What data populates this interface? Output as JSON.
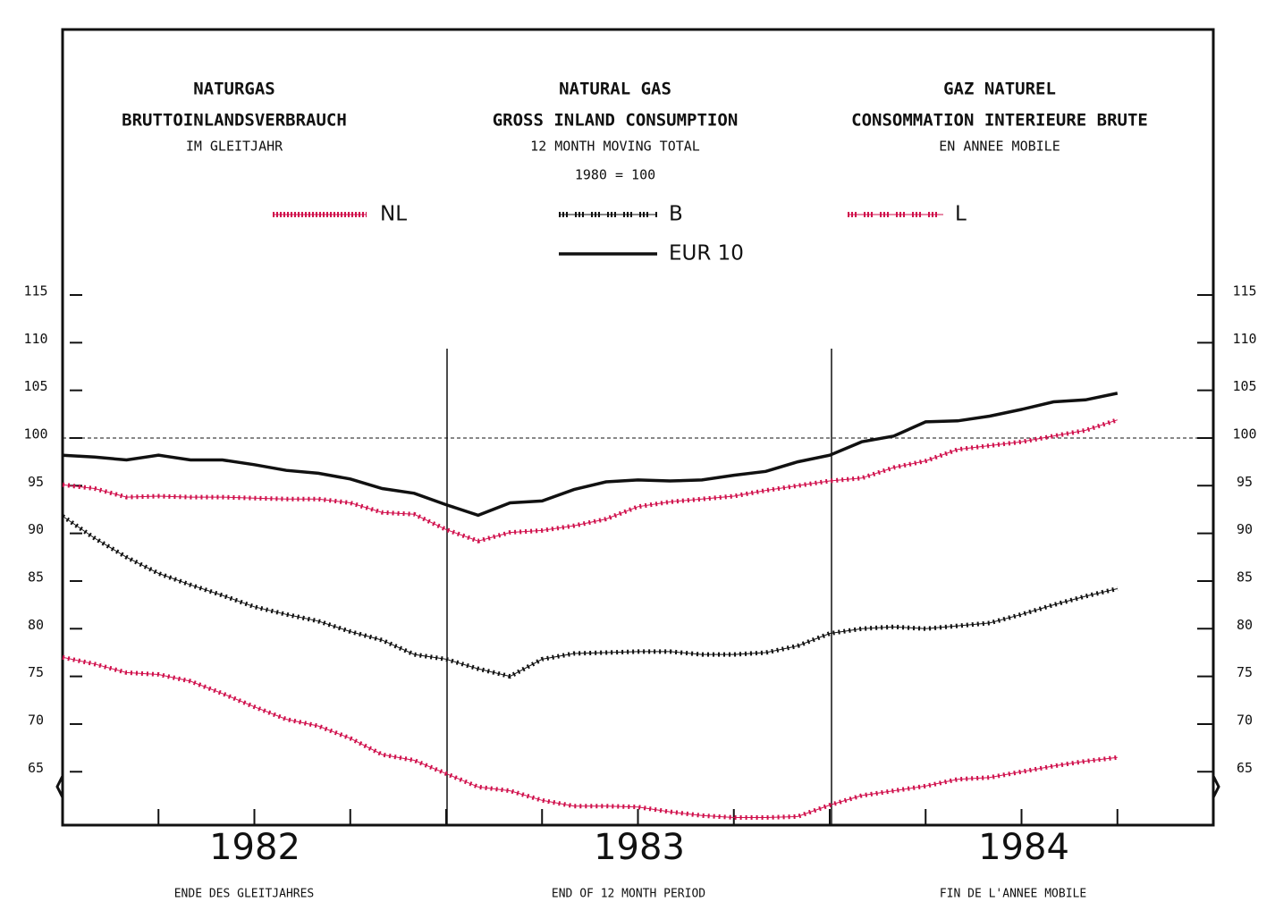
{
  "chart_data": {
    "type": "line",
    "title_de": [
      "NATURGAS",
      "BRUTTOINLANDSVERBRAUCH",
      "IM GLEITJAHR"
    ],
    "title_en": [
      "NATURAL GAS",
      "GROSS INLAND CONSUMPTION",
      "12 MONTH MOVING TOTAL",
      "1980 = 100"
    ],
    "title_fr": [
      "GAZ NATUREL",
      "CONSOMMATION INTERIEURE BRUTE",
      "EN ANNEE MOBILE"
    ],
    "year_labels": [
      "1982",
      "1983",
      "1984"
    ],
    "x_labels": [
      "ENDE DES GLEITJAHRES",
      "END OF 12 MONTH PERIOD",
      "FIN DE L'ANNEE MOBILE"
    ],
    "x": [
      0,
      1,
      2,
      3,
      4,
      5,
      6,
      7,
      8,
      9,
      10,
      11,
      12,
      13,
      14,
      15,
      16,
      17,
      18,
      19,
      20,
      21,
      22,
      23,
      24,
      25,
      26,
      27,
      28,
      29,
      30,
      31,
      32,
      33
    ],
    "xlim": [
      0,
      36
    ],
    "ylim": [
      60,
      115
    ],
    "yticks": [
      65,
      70,
      75,
      80,
      85,
      90,
      95,
      100,
      105,
      110,
      115
    ],
    "reference_line": 100,
    "series": [
      {
        "name": "NL",
        "color": "#d0104c",
        "style": "plus",
        "values": [
          95.1,
          94.7,
          93.8,
          93.9,
          93.8,
          93.8,
          93.7,
          93.6,
          93.6,
          93.2,
          92.2,
          92.0,
          90.4,
          89.2,
          90.1,
          90.3,
          90.8,
          91.5,
          92.8,
          93.3,
          93.6,
          93.9,
          94.5,
          95.0,
          95.5,
          95.8,
          96.9,
          97.6,
          98.8,
          99.2,
          99.6,
          100.2,
          100.8,
          101.9
        ]
      },
      {
        "name": "B",
        "color": "#111111",
        "style": "plus",
        "values": [
          91.8,
          89.5,
          87.5,
          85.8,
          84.6,
          83.5,
          82.3,
          81.5,
          80.8,
          79.7,
          78.8,
          77.3,
          76.8,
          75.8,
          75.0,
          76.8,
          77.4,
          77.5,
          77.6,
          77.6,
          77.3,
          77.3,
          77.5,
          78.2,
          79.5,
          80.0,
          80.2,
          80.0,
          80.3,
          80.6,
          81.5,
          82.5,
          83.4,
          84.2
        ]
      },
      {
        "name": "L",
        "color": "#d0104c",
        "style": "plus",
        "values": [
          77.0,
          76.3,
          75.4,
          75.2,
          74.5,
          73.2,
          71.8,
          70.5,
          69.8,
          68.5,
          66.8,
          66.2,
          64.8,
          63.4,
          63.0,
          62.0,
          61.4,
          61.4,
          61.3,
          60.8,
          60.4,
          60.2,
          60.2,
          60.3,
          61.5,
          62.5,
          63.0,
          63.5,
          64.2,
          64.4,
          65.0,
          65.6,
          66.1,
          66.5
        ]
      },
      {
        "name": "EUR 10",
        "color": "#111111",
        "style": "solid",
        "values": [
          98.2,
          98.0,
          97.7,
          98.2,
          97.7,
          97.7,
          97.2,
          96.6,
          96.3,
          95.7,
          94.7,
          94.2,
          93.0,
          91.9,
          93.2,
          93.4,
          94.6,
          95.4,
          95.6,
          95.5,
          95.6,
          96.1,
          96.5,
          97.5,
          98.2,
          99.6,
          100.2,
          101.7,
          101.8,
          102.3,
          103.0,
          103.8,
          104.0,
          104.7
        ]
      }
    ]
  }
}
